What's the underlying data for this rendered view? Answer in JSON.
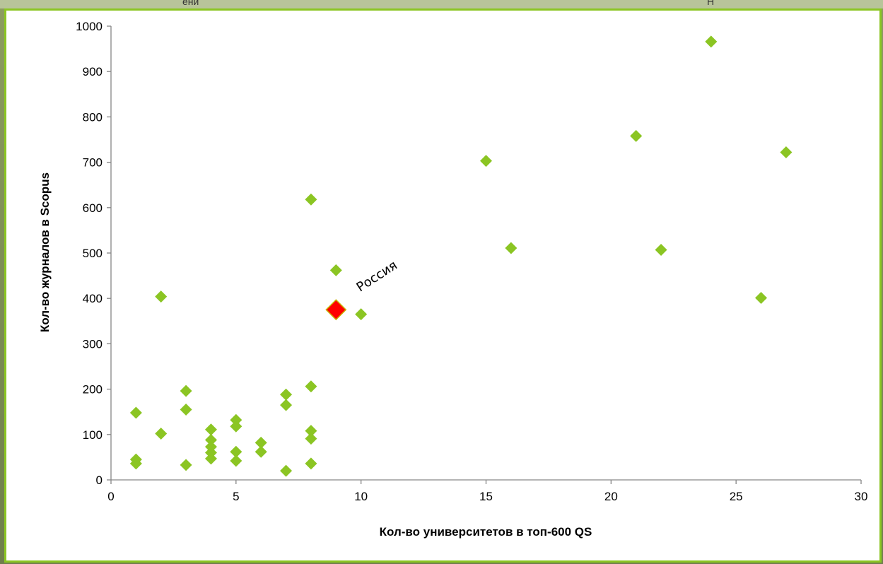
{
  "header_strip": {
    "left_text": "ени",
    "right_text": "Н"
  },
  "colors": {
    "point": "#8bc523",
    "highlight": "#ff0000",
    "highlight_border": "#c8b400",
    "panel_border": "#8bc523"
  },
  "chart_data": {
    "type": "scatter",
    "title": "",
    "xlabel": "Кол-во университетов в топ-600 QS",
    "ylabel": "Кол-во журналов в Scopus",
    "xlim": [
      0,
      30
    ],
    "ylim": [
      0,
      1000
    ],
    "xticks": [
      0,
      5,
      10,
      15,
      20,
      25,
      30
    ],
    "yticks": [
      0,
      100,
      200,
      300,
      400,
      500,
      600,
      700,
      800,
      900,
      1000
    ],
    "grid": false,
    "legend": "none",
    "points": [
      {
        "x": 1,
        "y": 148
      },
      {
        "x": 1,
        "y": 45
      },
      {
        "x": 1,
        "y": 36
      },
      {
        "x": 2,
        "y": 404
      },
      {
        "x": 2,
        "y": 102
      },
      {
        "x": 3,
        "y": 196
      },
      {
        "x": 3,
        "y": 155
      },
      {
        "x": 3,
        "y": 33
      },
      {
        "x": 4,
        "y": 111
      },
      {
        "x": 4,
        "y": 88
      },
      {
        "x": 4,
        "y": 73
      },
      {
        "x": 4,
        "y": 60
      },
      {
        "x": 4,
        "y": 47
      },
      {
        "x": 5,
        "y": 132
      },
      {
        "x": 5,
        "y": 118
      },
      {
        "x": 5,
        "y": 62
      },
      {
        "x": 5,
        "y": 42
      },
      {
        "x": 6,
        "y": 82
      },
      {
        "x": 6,
        "y": 62
      },
      {
        "x": 7,
        "y": 188
      },
      {
        "x": 7,
        "y": 165
      },
      {
        "x": 7,
        "y": 20
      },
      {
        "x": 8,
        "y": 618
      },
      {
        "x": 8,
        "y": 206
      },
      {
        "x": 8,
        "y": 108
      },
      {
        "x": 8,
        "y": 91
      },
      {
        "x": 8,
        "y": 36
      },
      {
        "x": 9,
        "y": 462
      },
      {
        "x": 10,
        "y": 365
      },
      {
        "x": 15,
        "y": 703
      },
      {
        "x": 16,
        "y": 511
      },
      {
        "x": 21,
        "y": 758
      },
      {
        "x": 22,
        "y": 507
      },
      {
        "x": 24,
        "y": 966
      },
      {
        "x": 26,
        "y": 401
      },
      {
        "x": 27,
        "y": 722
      }
    ],
    "highlight": {
      "x": 9,
      "y": 375,
      "label": "Россия"
    }
  }
}
